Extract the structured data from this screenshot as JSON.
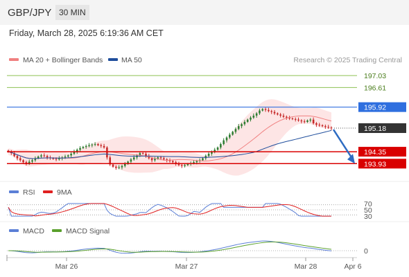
{
  "header": {
    "symbol": "GBP/JPY",
    "interval": "30 MIN",
    "datetime": "Friday, March 28, 2025 6:19:36 AM CET"
  },
  "colors": {
    "ma20": "#f08080",
    "bollinger_fill": "#fde0e0",
    "ma50": "#1f4e9c",
    "resistance": "#2f6fdf",
    "support": "#d90000",
    "target_line": "#8cc152",
    "candle_up": "#2e7d32",
    "candle_down": "#c62828",
    "last_price": "#333333",
    "arrow": "#2e6cc2",
    "rsi": "#5b7fd6",
    "rsi_ma": "#e02020",
    "macd": "#5b7fd6",
    "macd_signal": "#5aa02c"
  },
  "chart_data": [
    {
      "type": "candlestick",
      "legend": [
        {
          "name": "MA 20 + Bollinger Bands",
          "color": "#f08080"
        },
        {
          "name": "MA 50",
          "color": "#1f4e9c"
        }
      ],
      "watermark": "Research © 2025 Trading Central",
      "x_ticks": [
        "Mar 26",
        "Mar 27",
        "Mar 28",
        "Apr 6"
      ],
      "ylim": [
        193.45,
        197.35
      ],
      "levels": [
        {
          "value": 197.03,
          "label": "197.03",
          "kind": "target"
        },
        {
          "value": 196.61,
          "label": "196.61",
          "kind": "target"
        },
        {
          "value": 195.92,
          "label": "195.92",
          "kind": "resistance"
        },
        {
          "value": 195.18,
          "label": "195.18",
          "kind": "last"
        },
        {
          "value": 194.35,
          "label": "194.35",
          "kind": "support"
        },
        {
          "value": 193.93,
          "label": "193.93",
          "kind": "support"
        }
      ],
      "last_price": 195.18,
      "forecast_arrow": {
        "from": 195.18,
        "to": 193.93
      },
      "close": [
        194.35,
        194.3,
        194.2,
        194.12,
        194.05,
        193.98,
        193.93,
        194.0,
        194.05,
        194.12,
        194.18,
        194.22,
        194.2,
        194.15,
        194.12,
        194.1,
        194.08,
        194.12,
        194.15,
        194.18,
        194.22,
        194.28,
        194.35,
        194.42,
        194.48,
        194.52,
        194.55,
        194.58,
        194.6,
        194.62,
        194.58,
        194.55,
        194.5,
        194.15,
        193.9,
        193.82,
        193.78,
        193.8,
        193.85,
        193.92,
        194.0,
        194.08,
        194.15,
        194.22,
        194.3,
        194.28,
        194.2,
        194.12,
        194.05,
        194.1,
        194.15,
        194.12,
        194.08,
        194.05,
        194.02,
        193.98,
        193.92,
        193.88,
        193.85,
        193.88,
        193.92,
        193.95,
        193.98,
        194.02,
        194.05,
        194.12,
        194.2,
        194.28,
        194.35,
        194.42,
        194.5,
        194.62,
        194.75,
        194.85,
        194.95,
        195.05,
        195.15,
        195.25,
        195.32,
        195.4,
        195.48,
        195.55,
        195.62,
        195.7,
        195.8,
        195.85,
        195.82,
        195.78,
        195.75,
        195.7,
        195.66,
        195.62,
        195.58,
        195.55,
        195.52,
        195.5,
        195.48,
        195.45,
        195.42,
        195.4,
        195.45,
        195.48,
        195.35,
        195.3,
        195.28,
        195.25,
        195.22,
        195.2,
        195.18
      ]
    },
    {
      "type": "line",
      "legend": [
        {
          "name": "RSI",
          "color": "#5b7fd6"
        },
        {
          "name": "9MA",
          "color": "#e02020"
        }
      ],
      "levels": [
        "70",
        "50",
        "30"
      ],
      "ylim": [
        20,
        80
      ]
    },
    {
      "type": "line",
      "legend": [
        {
          "name": "MACD",
          "color": "#5b7fd6"
        },
        {
          "name": "MACD Signal",
          "color": "#5aa02c"
        }
      ],
      "levels": [
        "0"
      ]
    }
  ]
}
